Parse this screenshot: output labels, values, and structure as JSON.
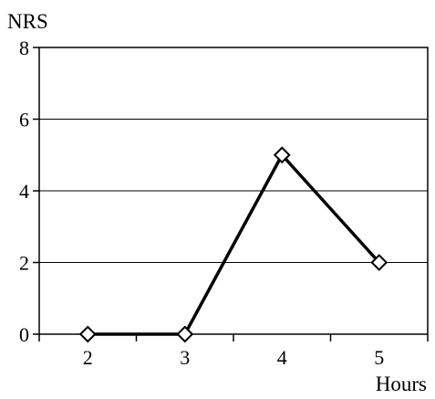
{
  "chart_data": {
    "type": "line",
    "title": "",
    "ylabel": "NRS",
    "xlabel": "Hours",
    "x": [
      2,
      3,
      4,
      5
    ],
    "y": [
      0,
      0,
      5,
      2
    ],
    "xlim": [
      1.5,
      5.5
    ],
    "ylim": [
      0,
      8
    ],
    "yticks": [
      0,
      2,
      4,
      6,
      8
    ],
    "xticks": [
      2,
      3,
      4,
      5
    ],
    "grid": "horizontal",
    "marker": "diamond",
    "legend": "none"
  }
}
